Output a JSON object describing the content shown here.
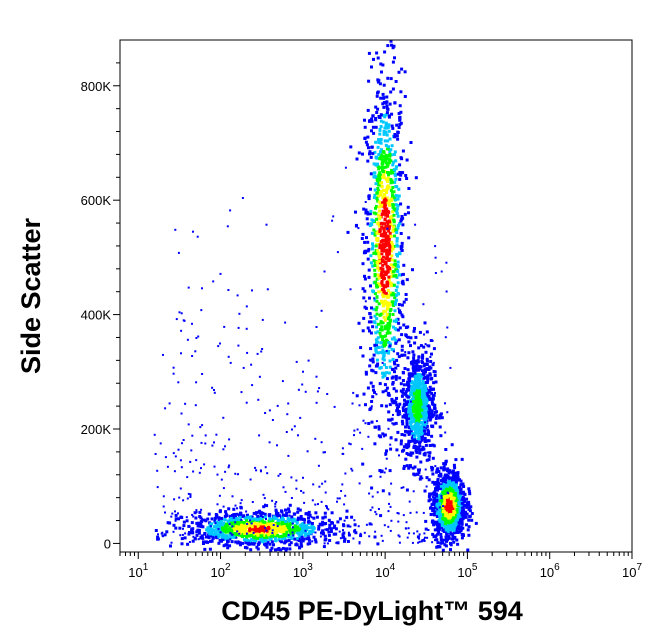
{
  "chart_data": {
    "type": "scatter",
    "style": "density-dot-plot",
    "xlabel": "CD45 PE-DyLight™ 594",
    "ylabel": "Side Scatter",
    "x_scale": "log",
    "xlim": [
      6,
      10000000
    ],
    "ylim": [
      -15000,
      880000
    ],
    "x_ticks": [
      {
        "value": 10,
        "base": "10",
        "exp": "1"
      },
      {
        "value": 100,
        "base": "10",
        "exp": "2"
      },
      {
        "value": 1000,
        "base": "10",
        "exp": "3"
      },
      {
        "value": 10000,
        "base": "10",
        "exp": "4"
      },
      {
        "value": 100000,
        "base": "10",
        "exp": "5"
      },
      {
        "value": 1000000,
        "base": "10",
        "exp": "6"
      },
      {
        "value": 10000000,
        "base": "10",
        "exp": "7"
      }
    ],
    "y_ticks": [
      {
        "value": 0,
        "label": "0"
      },
      {
        "value": 200000,
        "label": "200K"
      },
      {
        "value": 400000,
        "label": "400K"
      },
      {
        "value": 600000,
        "label": "600K"
      },
      {
        "value": 800000,
        "label": "800K"
      }
    ],
    "density_colors": [
      "#0000ff",
      "#00c8ff",
      "#00ff00",
      "#ffff00",
      "#ff0000"
    ],
    "populations": [
      {
        "x_center": 10000,
        "y_center": 520000,
        "x_spread_log": 0.12,
        "y_spread": 150000,
        "peak_density": 1.0
      },
      {
        "x_center": 25000,
        "y_center": 240000,
        "x_spread_log": 0.1,
        "y_spread": 50000,
        "peak_density": 0.6
      },
      {
        "x_center": 60000,
        "y_center": 65000,
        "x_spread_log": 0.1,
        "y_spread": 30000,
        "peak_density": 0.95
      },
      {
        "x_center": 300,
        "y_center": 25000,
        "x_spread_log": 0.45,
        "y_spread": 15000,
        "peak_density": 0.9
      }
    ]
  }
}
